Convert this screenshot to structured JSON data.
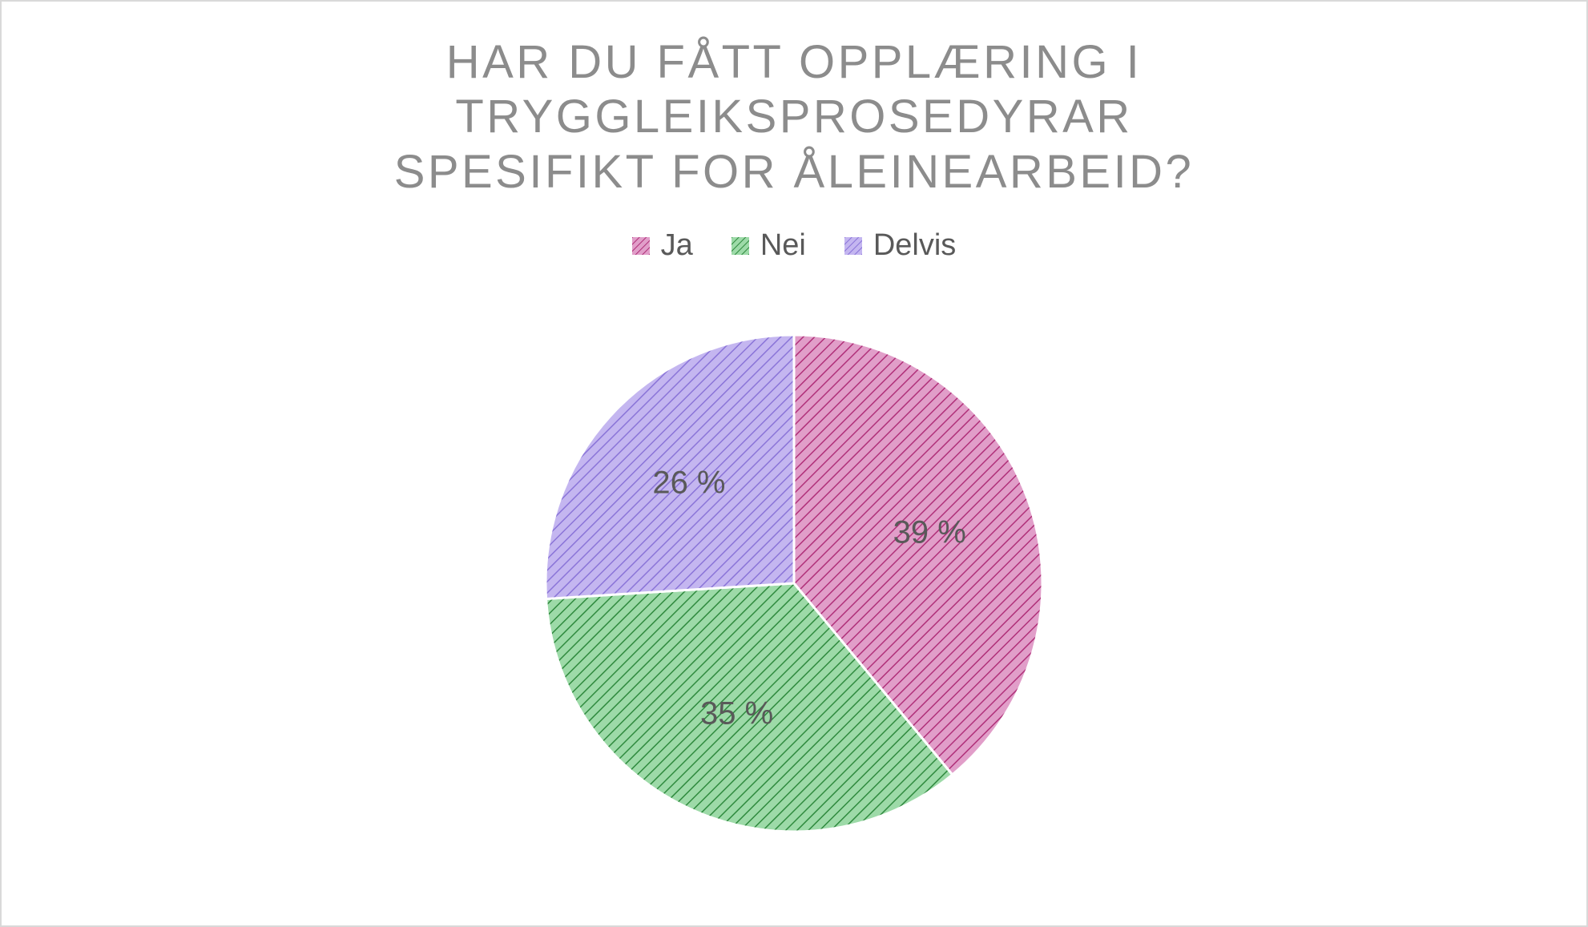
{
  "chart": {
    "type": "pie",
    "title": "HAR DU FÅTT OPPLÆRING I\nTRYGGLEIKSPROSEDYRAR\nSPESIFIKT FOR ÅLEINEARBEID?",
    "title_color": "#8c8c8c",
    "title_fontsize": 58,
    "background_color": "#ffffff",
    "border_color": "#d9d9d9",
    "legend_fontsize": 38,
    "legend_label_color": "#595959",
    "data_label_fontsize": 40,
    "data_label_color": "#595959",
    "pie_radius": 310,
    "slice_border_color": "#ffffff",
    "slice_border_width": 3,
    "slices": [
      {
        "label": "Ja",
        "value": 39,
        "display": "39 %",
        "fill": "#e19ec9",
        "hatch_stroke": "#b03079",
        "swatch_bg": "#e19ec9",
        "swatch_stroke": "#b03079"
      },
      {
        "label": "Nei",
        "value": 35,
        "display": "35 %",
        "fill": "#9ddaa8",
        "hatch_stroke": "#2f8a3e",
        "swatch_bg": "#9ddaa8",
        "swatch_stroke": "#2f8a3e"
      },
      {
        "label": "Delvis",
        "value": 26,
        "display": "26 %",
        "fill": "#c4b6f0",
        "hatch_stroke": "#8a74d8",
        "swatch_bg": "#c4b6f0",
        "swatch_stroke": "#8a74d8"
      }
    ]
  }
}
